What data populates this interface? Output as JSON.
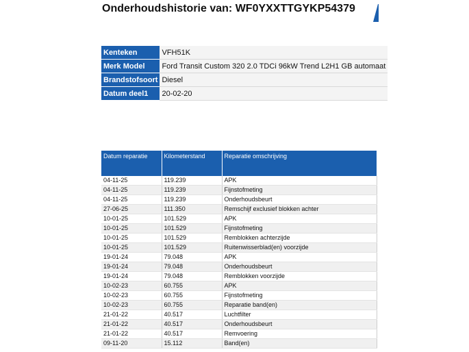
{
  "header": {
    "title": "Onderhoudshistorie van: WF0YXXTTGYKP54379"
  },
  "vehicle": {
    "rows": [
      [
        "Kenteken",
        "VFH51K"
      ],
      [
        "Merk Model",
        "Ford Transit Custom 320 2.0 TDCi 96kW Trend L2H1 GB automaat"
      ],
      [
        "Brandstofsoort",
        "Diesel"
      ],
      [
        "Datum deel1",
        "20-02-20"
      ]
    ]
  },
  "table": {
    "columns": [
      "Datum reparatie",
      "Kilometerstand",
      "Reparatie omschrijving"
    ],
    "rows": [
      [
        "04-11-25",
        "119.239",
        "APK"
      ],
      [
        "04-11-25",
        "119.239",
        "Fijnstofmeting"
      ],
      [
        "04-11-25",
        "119.239",
        "Onderhoudsbeurt"
      ],
      [
        "27-06-25",
        "111.350",
        "Remschijf exclusief blokken achter"
      ],
      [
        "10-01-25",
        "101.529",
        "APK"
      ],
      [
        "10-01-25",
        "101.529",
        "Fijnstofmeting"
      ],
      [
        "10-01-25",
        "101.529",
        "Remblokken achterzijde"
      ],
      [
        "10-01-25",
        "101.529",
        "Ruitenwisserblad(en) voorzijde"
      ],
      [
        "19-01-24",
        "79.048",
        "APK"
      ],
      [
        "19-01-24",
        "79.048",
        "Onderhoudsbeurt"
      ],
      [
        "19-01-24",
        "79.048",
        "Remblokken voorzijde"
      ],
      [
        "10-02-23",
        "60.755",
        "APK"
      ],
      [
        "10-02-23",
        "60.755",
        "Fijnstofmeting"
      ],
      [
        "10-02-23",
        "60.755",
        "Reparatie band(en)"
      ],
      [
        "21-01-22",
        "40.517",
        "Luchtfilter"
      ],
      [
        "21-01-22",
        "40.517",
        "Onderhoudsbeurt"
      ],
      [
        "21-01-22",
        "40.517",
        "Remvoering"
      ],
      [
        "09-11-20",
        "15.112",
        "Band(en)"
      ]
    ]
  }
}
